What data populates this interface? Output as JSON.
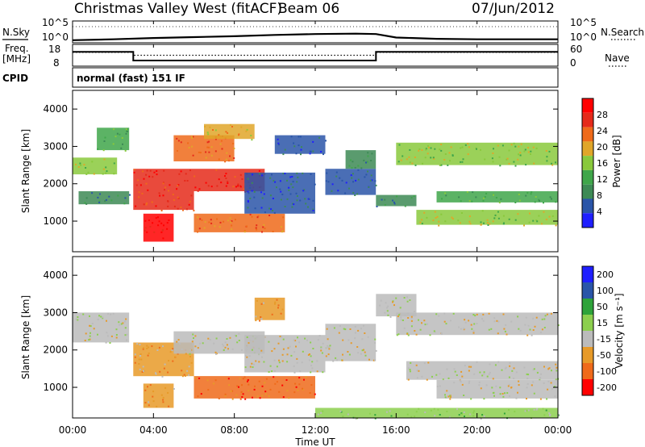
{
  "header": {
    "station": "Christmas Valley West (fitACF)",
    "beam": "Beam 06",
    "date": "07/Jun/2012"
  },
  "side_labels": {
    "nsky": "N.Sky",
    "nsearch": "N.Search",
    "freq_line1": "Freq.",
    "freq_line2": "[MHz]",
    "nave": "Nave",
    "cpid": "CPID",
    "mode": "normal (fast) 151 IF"
  },
  "colors": {
    "power": [
      "#1f1fff",
      "#2a55a8",
      "#3d8a55",
      "#3fa64a",
      "#89c93c",
      "#e0a629",
      "#ef6a1a",
      "#e52a1a",
      "#ff0000"
    ],
    "velocity": [
      "#ff0000",
      "#ef6a1a",
      "#e79a28",
      "#bbbbbb",
      "#8ccf4e",
      "#2ea33a",
      "#2a55a8",
      "#1f1fff"
    ],
    "ground_scatter": "#bbbbbb"
  },
  "chart_data": [
    {
      "name": "noise",
      "type": "line",
      "y_left_ticks": [
        "10^5",
        "10^0"
      ],
      "y_right_ticks": [
        "10^5",
        "10^0"
      ],
      "series": [
        {
          "name": "N.Sky",
          "style": "solid",
          "x_hours": [
            0,
            2,
            4,
            6,
            8,
            10,
            12,
            14,
            15,
            16,
            18,
            20,
            22,
            24
          ],
          "values_log10": [
            0.6,
            0.8,
            1.1,
            1.3,
            1.5,
            1.8,
            2.0,
            2.1,
            2.0,
            1.2,
            0.9,
            0.8,
            0.8,
            0.8
          ]
        }
      ]
    },
    {
      "name": "frequency",
      "type": "line",
      "y_left_ticks": [
        "18",
        "8"
      ],
      "y_right_ticks": [
        "60",
        "0"
      ],
      "series": [
        {
          "name": "Freq.",
          "style": "solid",
          "x_hours": [
            0,
            3,
            3,
            15,
            15,
            24
          ],
          "values": [
            14.6,
            14.6,
            10.6,
            10.6,
            14.6,
            14.6
          ]
        },
        {
          "name": "Nave",
          "style": "dotted",
          "x_hours": [
            0,
            3,
            3,
            15,
            15,
            24
          ],
          "values": [
            38,
            38,
            30,
            30,
            38,
            38
          ]
        }
      ]
    },
    {
      "name": "power",
      "type": "heatmap",
      "ylabel": "Slant Range [km]",
      "yticks": [
        "4000",
        "3000",
        "2000",
        "1000"
      ],
      "colorbar_label": "Power [dB]",
      "colorbar_ticks": [
        "28",
        "24",
        "20",
        "16",
        "12",
        "8",
        "4"
      ],
      "xlim": [
        0,
        24
      ],
      "ylim": [
        180,
        4500
      ],
      "bands": [
        {
          "h0": 0,
          "h1": 2.2,
          "r0": 2250,
          "r1": 2700,
          "c": 4
        },
        {
          "h0": 0.3,
          "h1": 2.8,
          "r0": 1450,
          "r1": 1800,
          "c": 2
        },
        {
          "h0": 1.2,
          "h1": 2.8,
          "r0": 2900,
          "r1": 3500,
          "c": 3
        },
        {
          "h0": 3.0,
          "h1": 6.0,
          "r0": 1300,
          "r1": 1800,
          "c": 7
        },
        {
          "h0": 3.0,
          "h1": 9.5,
          "r0": 1800,
          "r1": 2400,
          "c": 7
        },
        {
          "h0": 3.5,
          "h1": 5.0,
          "r0": 450,
          "r1": 1200,
          "c": 8
        },
        {
          "h0": 5.0,
          "h1": 8.0,
          "r0": 2600,
          "r1": 3300,
          "c": 6
        },
        {
          "h0": 6.5,
          "h1": 9.0,
          "r0": 3200,
          "r1": 3600,
          "c": 5
        },
        {
          "h0": 6.0,
          "h1": 10.5,
          "r0": 700,
          "r1": 1200,
          "c": 6
        },
        {
          "h0": 8.5,
          "h1": 12.0,
          "r0": 1200,
          "r1": 2300,
          "c": 1
        },
        {
          "h0": 10.0,
          "h1": 12.5,
          "r0": 2800,
          "r1": 3300,
          "c": 1
        },
        {
          "h0": 12.5,
          "h1": 15.0,
          "r0": 1700,
          "r1": 2400,
          "c": 1
        },
        {
          "h0": 13.5,
          "h1": 15.0,
          "r0": 2400,
          "r1": 2900,
          "c": 2
        },
        {
          "h0": 15.0,
          "h1": 17.0,
          "r0": 1400,
          "r1": 1700,
          "c": 2
        },
        {
          "h0": 16.0,
          "h1": 24.0,
          "r0": 2500,
          "r1": 3100,
          "c": 4
        },
        {
          "h0": 17.0,
          "h1": 24.0,
          "r0": 900,
          "r1": 1300,
          "c": 4
        },
        {
          "h0": 18.0,
          "h1": 24.0,
          "r0": 1500,
          "r1": 1800,
          "c": 3
        }
      ]
    },
    {
      "name": "velocity",
      "type": "heatmap",
      "ylabel": "Slant Range [km]",
      "yticks": [
        "4000",
        "3000",
        "2000",
        "1000"
      ],
      "colorbar_label": "Velocity [m s⁻¹]",
      "colorbar_ticks": [
        "200",
        "100",
        "50",
        "15",
        "-15",
        "-50",
        "-100",
        "-200"
      ],
      "xlim": [
        0,
        24
      ],
      "ylim": [
        180,
        4500
      ],
      "bands": [
        {
          "h0": 0,
          "h1": 2.8,
          "r0": 2200,
          "r1": 3000,
          "c": 3
        },
        {
          "h0": 3.0,
          "h1": 6.0,
          "r0": 1300,
          "r1": 2200,
          "c": 2
        },
        {
          "h0": 3.5,
          "h1": 5.0,
          "r0": 450,
          "r1": 1100,
          "c": 2
        },
        {
          "h0": 5.0,
          "h1": 9.5,
          "r0": 1900,
          "r1": 2500,
          "c": 3
        },
        {
          "h0": 6.0,
          "h1": 12.0,
          "r0": 700,
          "r1": 1300,
          "c": 1
        },
        {
          "h0": 8.5,
          "h1": 12.5,
          "r0": 1400,
          "r1": 2400,
          "c": 3
        },
        {
          "h0": 9.0,
          "h1": 10.5,
          "r0": 2800,
          "r1": 3400,
          "c": 2
        },
        {
          "h0": 12.5,
          "h1": 15.0,
          "r0": 1700,
          "r1": 2700,
          "c": 3
        },
        {
          "h0": 15.0,
          "h1": 17.0,
          "r0": 2900,
          "r1": 3500,
          "c": 3
        },
        {
          "h0": 16.0,
          "h1": 24.0,
          "r0": 2400,
          "r1": 3000,
          "c": 3
        },
        {
          "h0": 16.5,
          "h1": 24.0,
          "r0": 1200,
          "r1": 1700,
          "c": 3
        },
        {
          "h0": 18.0,
          "h1": 24.0,
          "r0": 700,
          "r1": 1200,
          "c": 3
        },
        {
          "h0": 12.0,
          "h1": 24.0,
          "r0": 180,
          "r1": 450,
          "c": 4
        }
      ]
    }
  ],
  "xaxis": {
    "ticks": [
      "00:00",
      "04:00",
      "08:00",
      "12:00",
      "16:00",
      "20:00",
      "00:00"
    ],
    "label": "Time UT"
  }
}
